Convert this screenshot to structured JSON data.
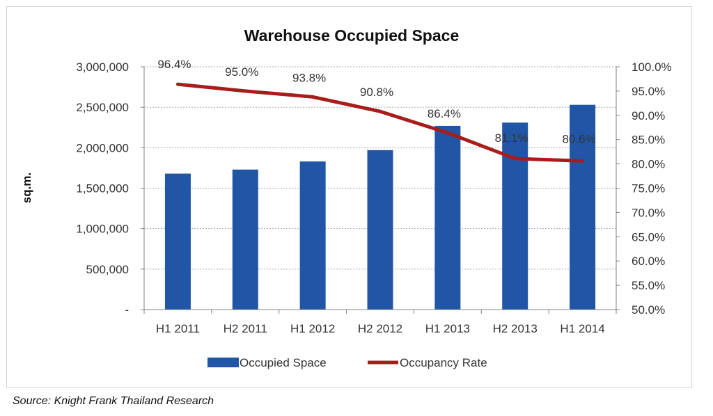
{
  "chart_data": {
    "type": "bar",
    "title": "Warehouse Occupied Space",
    "categories": [
      "H1 2011",
      "H2 2011",
      "H1 2012",
      "H2 2012",
      "H1 2013",
      "H2 2013",
      "H1 2014"
    ],
    "series": [
      {
        "name": "Occupied Space",
        "type": "bar",
        "axis": "left",
        "values": [
          1680000,
          1730000,
          1830000,
          1970000,
          2270000,
          2310000,
          2530000
        ]
      },
      {
        "name": "Occupancy Rate",
        "type": "line",
        "axis": "right",
        "values": [
          96.4,
          95.0,
          93.8,
          90.8,
          86.4,
          81.1,
          80.6
        ],
        "labels": [
          "96.4%",
          "95.0%",
          "93.8%",
          "90.8%",
          "86.4%",
          "81.1%",
          "80.6%"
        ]
      }
    ],
    "ylabel": "sq.m.",
    "xlabel": "",
    "ylim": [
      0,
      3000000
    ],
    "y2lim": [
      50,
      100
    ],
    "y_ticks": [
      {
        "value": 0,
        "label": "-"
      },
      {
        "value": 500000,
        "label": "500,000"
      },
      {
        "value": 1000000,
        "label": "1,000,000"
      },
      {
        "value": 1500000,
        "label": "1,500,000"
      },
      {
        "value": 2000000,
        "label": "2,000,000"
      },
      {
        "value": 2500000,
        "label": "2,500,000"
      },
      {
        "value": 3000000,
        "label": "3,000,000"
      }
    ],
    "y2_ticks": [
      {
        "value": 50,
        "label": "50.0%"
      },
      {
        "value": 55,
        "label": "55.0%"
      },
      {
        "value": 60,
        "label": "60.0%"
      },
      {
        "value": 65,
        "label": "65.0%"
      },
      {
        "value": 70,
        "label": "70.0%"
      },
      {
        "value": 75,
        "label": "75.0%"
      },
      {
        "value": 80,
        "label": "80.0%"
      },
      {
        "value": 85,
        "label": "85.0%"
      },
      {
        "value": 90,
        "label": "90.0%"
      },
      {
        "value": 95,
        "label": "95.0%"
      },
      {
        "value": 100,
        "label": "100.0%"
      }
    ],
    "grid": true,
    "grid_style": "dotted",
    "legend": "bottom",
    "colors": {
      "bar": "#2156a6",
      "line": "#a81c1c",
      "grid": "#aaaaaa",
      "axis": "#808080",
      "text": "#333333"
    }
  },
  "source": "Source: Knight Frank Thailand Research"
}
